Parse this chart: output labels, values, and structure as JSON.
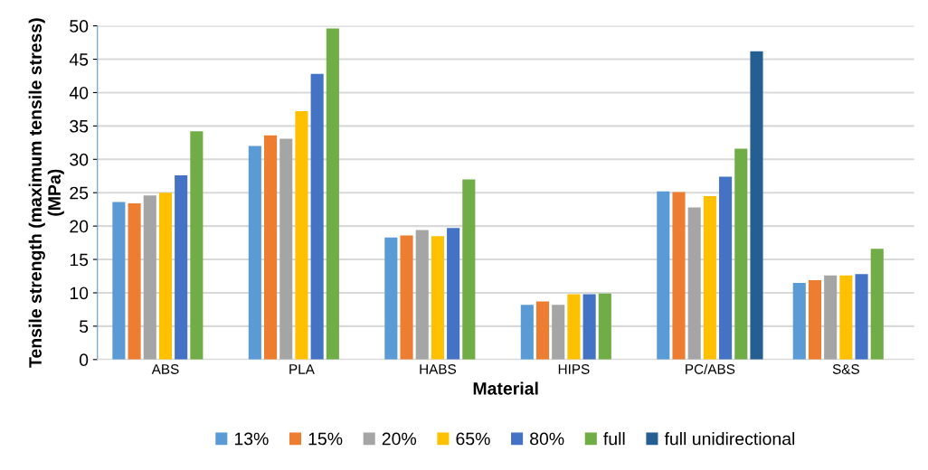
{
  "chart_data": {
    "type": "bar",
    "xlabel": "Material",
    "ylabel": "Tensile strength (maximum tensile stress) (MPa)",
    "categories": [
      "ABS",
      "PLA",
      "HABS",
      "HIPS",
      "PC/ABS",
      "S&S"
    ],
    "series": [
      {
        "name": "13%",
        "color": "#5b9bd5",
        "values": [
          23.6,
          32,
          18.3,
          8.2,
          25.2,
          11.5
        ]
      },
      {
        "name": "15%",
        "color": "#ed7d31",
        "values": [
          23.4,
          33.6,
          18.6,
          8.7,
          25.1,
          11.9
        ]
      },
      {
        "name": "20%",
        "color": "#a5a5a5",
        "values": [
          24.6,
          33.1,
          19.4,
          8.2,
          22.8,
          12.6
        ]
      },
      {
        "name": "65%",
        "color": "#ffc000",
        "values": [
          25,
          37.2,
          18.5,
          9.8,
          24.5,
          12.6
        ]
      },
      {
        "name": "80%",
        "color": "#4472c4",
        "values": [
          27.6,
          42.8,
          19.7,
          9.8,
          27.4,
          12.8
        ]
      },
      {
        "name": "full",
        "color": "#70ad47",
        "values": [
          34.2,
          49.6,
          27,
          9.9,
          31.6,
          16.6
        ]
      },
      {
        "name": "full unidirectional",
        "color": "#255e91",
        "values": [
          null,
          null,
          null,
          null,
          46.2,
          null
        ]
      }
    ],
    "ylim": [
      0,
      50
    ],
    "yticks": [
      0,
      5,
      10,
      15,
      20,
      25,
      30,
      35,
      40,
      45,
      50
    ],
    "grid": "y",
    "legend": "bottom"
  }
}
